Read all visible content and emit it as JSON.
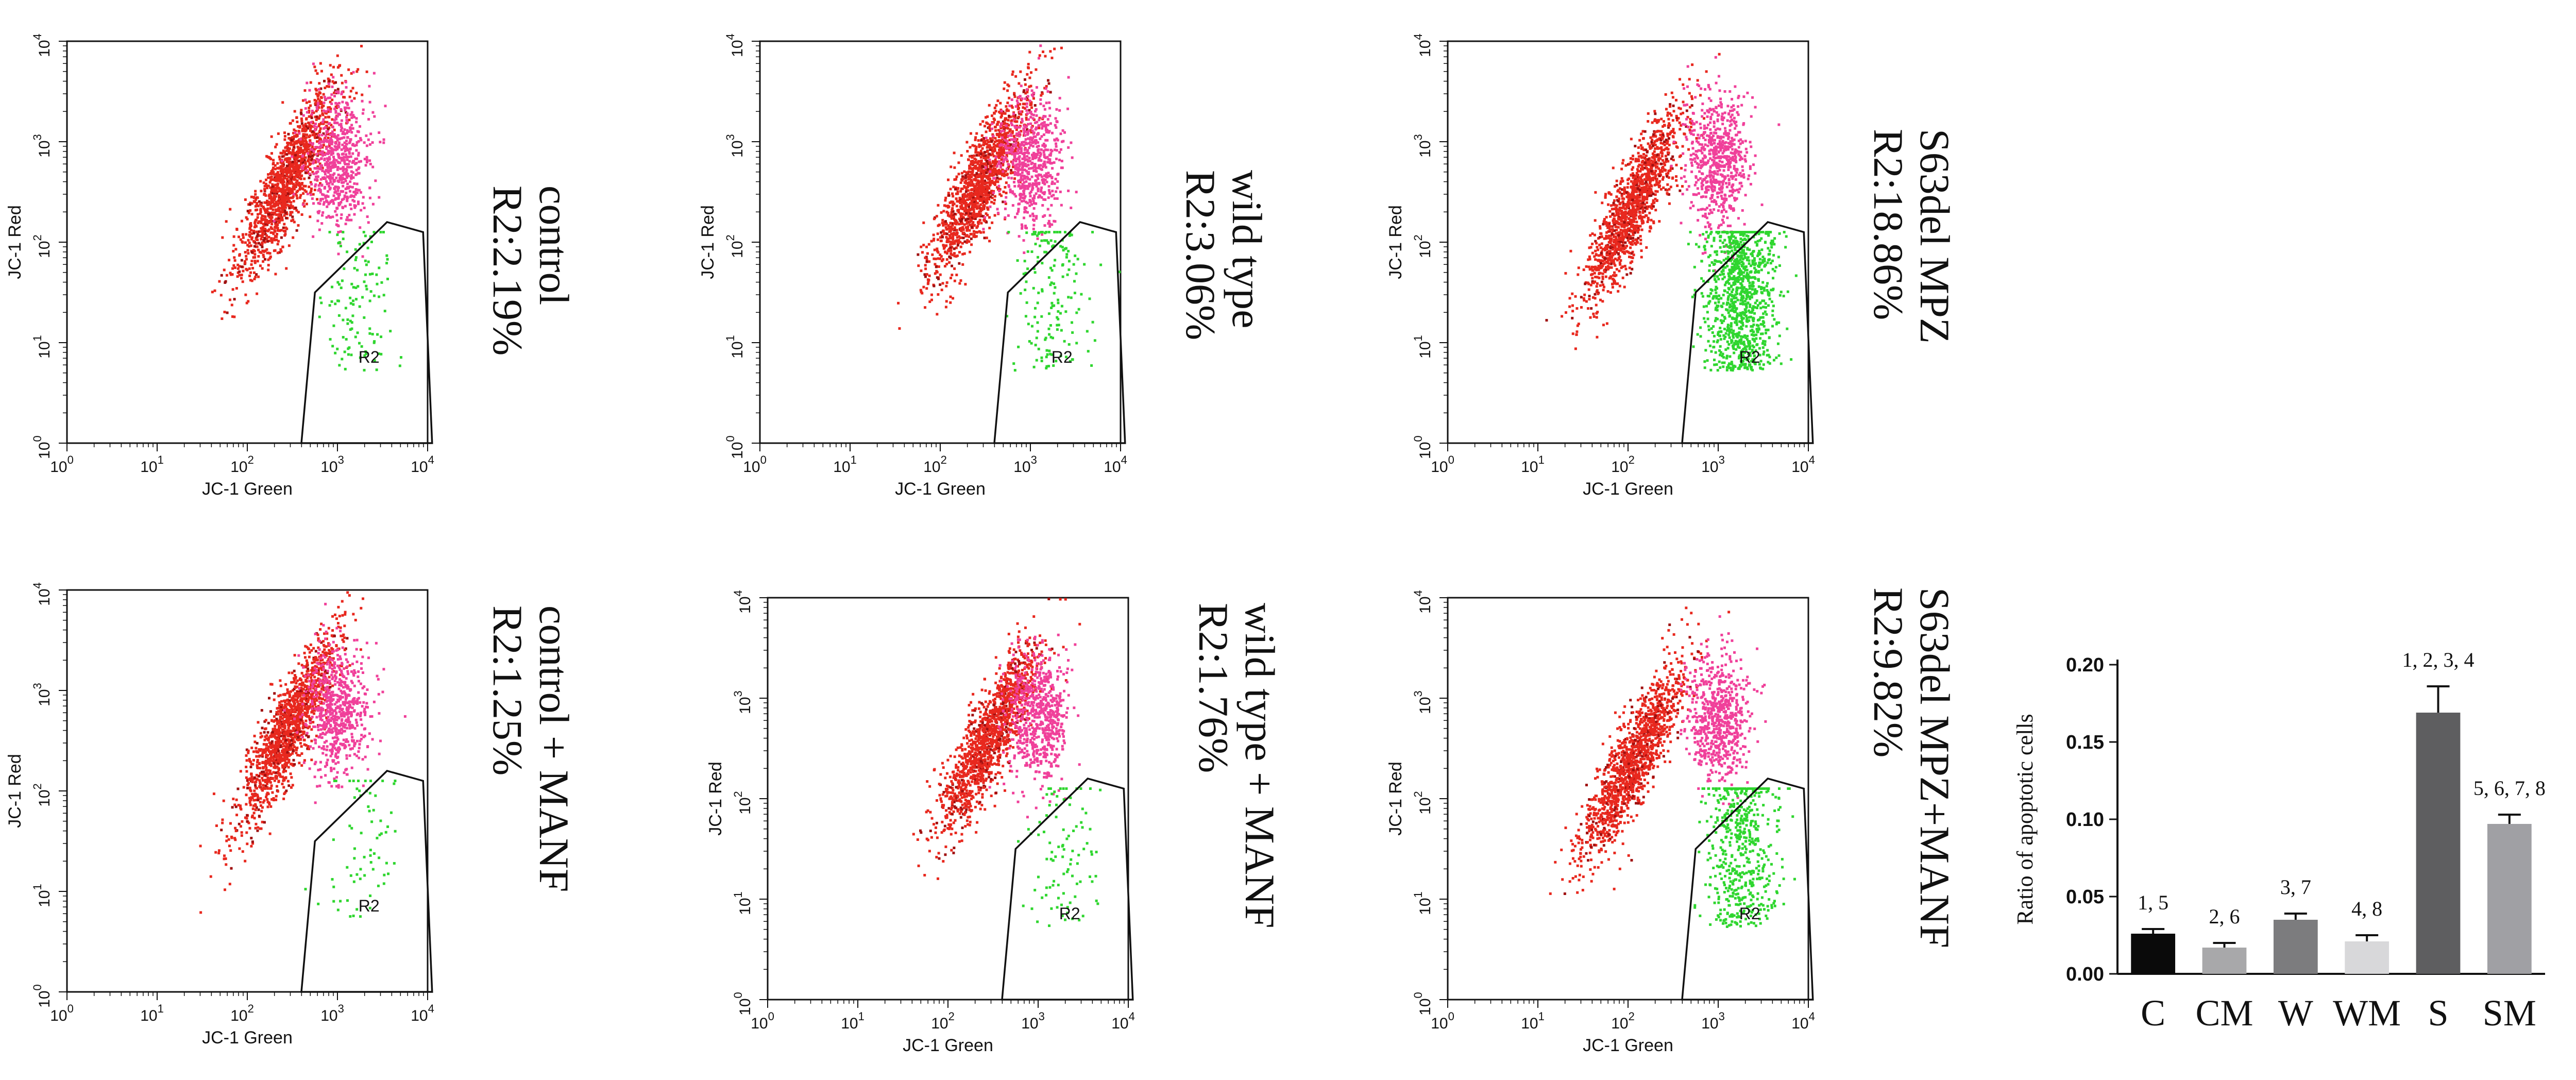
{
  "colors": {
    "red": "#e8281e",
    "magenta": "#f0409a",
    "green": "#2fd62f",
    "dark_red": "#a01010"
  },
  "flow_common": {
    "xlabel": "JC-1 Green",
    "ylabel": "JC-1 Red",
    "tick_base": "10",
    "tick_exps": [
      "0",
      "1",
      "2",
      "3",
      "4"
    ],
    "gate_label": "R2"
  },
  "panels": [
    {
      "id": "p1",
      "label_lines": [
        "control",
        "R2:2.19%"
      ],
      "green_pct": 2.19
    },
    {
      "id": "p2",
      "label_lines": [
        "wild type",
        "R2:3.06%"
      ],
      "green_pct": 3.06
    },
    {
      "id": "p3",
      "label_lines": [
        "S63del MPZ",
        "R2:18.86%"
      ],
      "green_pct": 18.86
    },
    {
      "id": "p4",
      "label_lines": [
        "control + MANF",
        "R2:1.25%"
      ],
      "green_pct": 1.25
    },
    {
      "id": "p5",
      "label_lines": [
        "wild type + MANF",
        "R2:1.76%"
      ],
      "green_pct": 1.76
    },
    {
      "id": "p6",
      "label_lines": [
        "S63del MPZ+MANF",
        "R2:9.82%"
      ],
      "green_pct": 9.82
    }
  ],
  "chart_data": {
    "type": "bar",
    "categories": [
      "C",
      "CM",
      "W",
      "WM",
      "S",
      "SM"
    ],
    "values": [
      0.026,
      0.017,
      0.035,
      0.021,
      0.169,
      0.097
    ],
    "errors": [
      0.003,
      0.003,
      0.004,
      0.004,
      0.017,
      0.006
    ],
    "annotations": [
      "1, 5",
      "2, 6",
      "3, 7",
      "4, 8",
      "1, 2, 3, 4",
      "5, 6, 7, 8"
    ],
    "bar_colors": [
      "#0a0a0a",
      "#a8a8aa",
      "#7c7c7e",
      "#d8d8da",
      "#5e5e60",
      "#a0a0a4"
    ],
    "ylabel": "Ratio of apoptotic cells",
    "ylim": [
      0,
      0.2
    ],
    "yticks": [
      "0.00",
      "0.05",
      "0.10",
      "0.15",
      "0.20"
    ]
  }
}
